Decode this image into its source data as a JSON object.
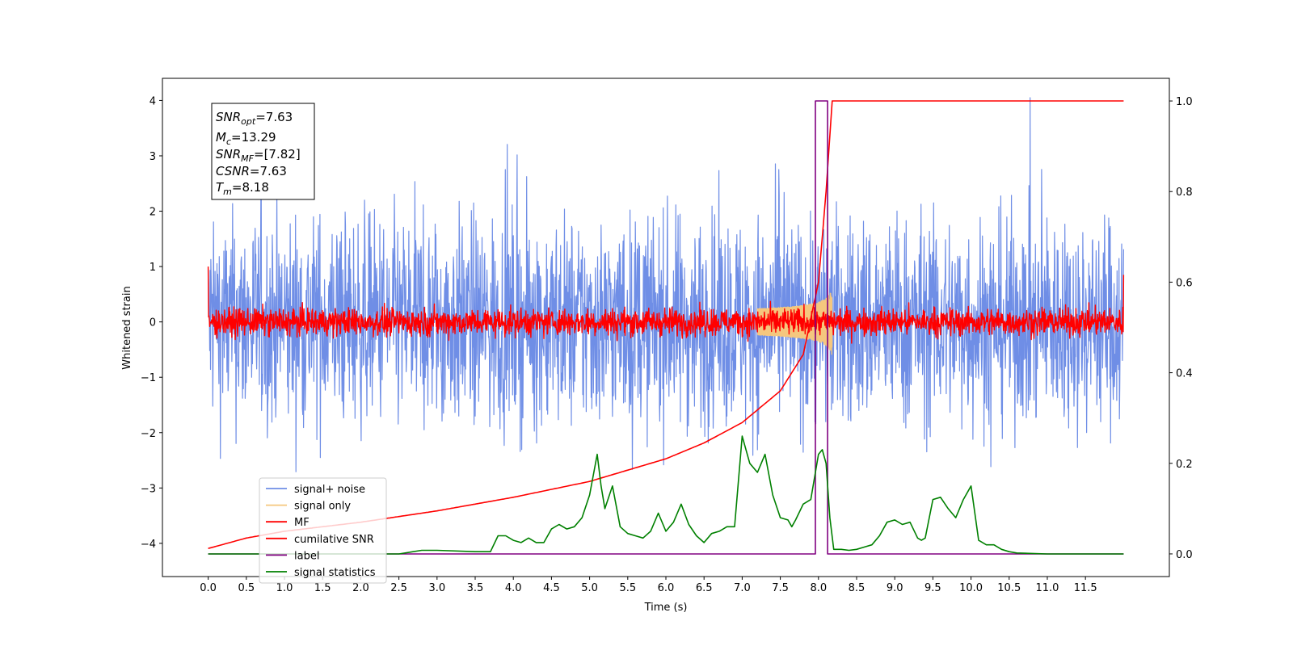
{
  "chart_data": {
    "type": "line",
    "xlabel": "Time (s)",
    "ylabel": "Whitened strain",
    "xlim": [
      -0.6,
      12.6
    ],
    "ylim": [
      -4.6,
      4.4
    ],
    "y2lim": [
      -0.05,
      1.05
    ],
    "x_ticks": [
      "0.0",
      "0.5",
      "1.0",
      "1.5",
      "2.0",
      "2.5",
      "3.0",
      "3.5",
      "4.0",
      "4.5",
      "5.0",
      "5.5",
      "6.0",
      "6.5",
      "7.0",
      "7.5",
      "8.0",
      "8.5",
      "9.0",
      "9.5",
      "10.0",
      "10.5",
      "11.0",
      "11.5"
    ],
    "y_ticks": [
      "4",
      "3",
      "2",
      "1",
      "0",
      "−1",
      "−2",
      "−3",
      "−4"
    ],
    "y2_ticks": [
      "1.0",
      "0.8",
      "0.6",
      "0.4",
      "0.2",
      "0.0"
    ],
    "annotation": {
      "line1_sym": "SNR",
      "line1_sub": "opt",
      "line1_val": "=7.63",
      "line2_sym": "M",
      "line2_sub": "c",
      "line2_val": "=13.29",
      "line3_sym": "SNR",
      "line3_sub": "MF",
      "line3_val": "=[7.82]",
      "line4_sym": "CSNR",
      "line4_val": "=7.63",
      "line5_sym": "T",
      "line5_sub": "m",
      "line5_val": "=8.18"
    },
    "legend_location": "lower left",
    "series": [
      {
        "name": "signal+ noise",
        "color": "#6f8ee6",
        "axis": "left",
        "kind": "noise",
        "amplitude": 1.0,
        "t_start": 0.0,
        "t_end": 12.0
      },
      {
        "name": "signal only",
        "color": "#f5c77e",
        "axis": "left",
        "kind": "chirp",
        "t_merger": 8.18,
        "peak_amplitude": 0.65
      },
      {
        "name": "MF",
        "color": "#ff0000",
        "axis": "left",
        "kind": "noise",
        "amplitude": 0.13,
        "t_start": 0.0,
        "t_end": 12.0,
        "edge_values": [
          1.0,
          0.85
        ]
      },
      {
        "name": "cumilative SNR",
        "color": "#ff0000",
        "axis": "right",
        "x": [
          0.0,
          0.5,
          1.0,
          2.0,
          3.0,
          4.0,
          5.0,
          6.0,
          6.5,
          7.0,
          7.5,
          7.8,
          8.0,
          8.1,
          8.18,
          12.0
        ],
        "y": [
          0.012,
          0.035,
          0.05,
          0.07,
          0.095,
          0.125,
          0.16,
          0.21,
          0.245,
          0.29,
          0.36,
          0.44,
          0.6,
          0.8,
          1.0,
          1.0
        ]
      },
      {
        "name": "label",
        "color": "#800080",
        "axis": "right",
        "x": [
          0.0,
          7.96,
          7.96,
          8.12,
          8.12,
          12.0
        ],
        "y": [
          0.0,
          0.0,
          1.0,
          1.0,
          0.0,
          0.0
        ]
      },
      {
        "name": "signal statistics",
        "color": "#008000",
        "axis": "right",
        "x": [
          0.0,
          0.5,
          1.0,
          1.5,
          2.0,
          2.5,
          2.8,
          3.0,
          3.5,
          3.7,
          3.8,
          3.9,
          4.0,
          4.1,
          4.2,
          4.3,
          4.4,
          4.5,
          4.6,
          4.7,
          4.8,
          4.9,
          5.0,
          5.1,
          5.15,
          5.2,
          5.3,
          5.4,
          5.5,
          5.6,
          5.7,
          5.8,
          5.9,
          6.0,
          6.1,
          6.2,
          6.3,
          6.4,
          6.5,
          6.6,
          6.7,
          6.8,
          6.9,
          7.0,
          7.1,
          7.2,
          7.25,
          7.3,
          7.4,
          7.5,
          7.6,
          7.65,
          7.7,
          7.8,
          7.9,
          8.0,
          8.05,
          8.1,
          8.15,
          8.2,
          8.3,
          8.4,
          8.5,
          8.6,
          8.7,
          8.8,
          8.9,
          9.0,
          9.1,
          9.2,
          9.3,
          9.35,
          9.4,
          9.5,
          9.6,
          9.7,
          9.8,
          9.9,
          10.0,
          10.1,
          10.2,
          10.3,
          10.4,
          10.5,
          10.6,
          11.0,
          11.5,
          12.0
        ],
        "y": [
          0.0,
          0.0,
          0.0,
          0.0,
          0.0,
          0.0,
          0.008,
          0.008,
          0.005,
          0.005,
          0.04,
          0.04,
          0.03,
          0.025,
          0.035,
          0.025,
          0.025,
          0.055,
          0.065,
          0.055,
          0.06,
          0.08,
          0.13,
          0.22,
          0.15,
          0.1,
          0.15,
          0.06,
          0.045,
          0.04,
          0.035,
          0.05,
          0.09,
          0.05,
          0.07,
          0.11,
          0.065,
          0.04,
          0.025,
          0.045,
          0.05,
          0.06,
          0.06,
          0.26,
          0.2,
          0.18,
          0.2,
          0.22,
          0.13,
          0.08,
          0.075,
          0.06,
          0.075,
          0.11,
          0.12,
          0.22,
          0.23,
          0.2,
          0.08,
          0.01,
          0.01,
          0.008,
          0.01,
          0.015,
          0.02,
          0.04,
          0.07,
          0.075,
          0.065,
          0.07,
          0.035,
          0.03,
          0.035,
          0.12,
          0.125,
          0.1,
          0.08,
          0.12,
          0.15,
          0.03,
          0.02,
          0.02,
          0.01,
          0.005,
          0.002,
          0.0,
          0.0,
          0.0
        ]
      }
    ]
  }
}
